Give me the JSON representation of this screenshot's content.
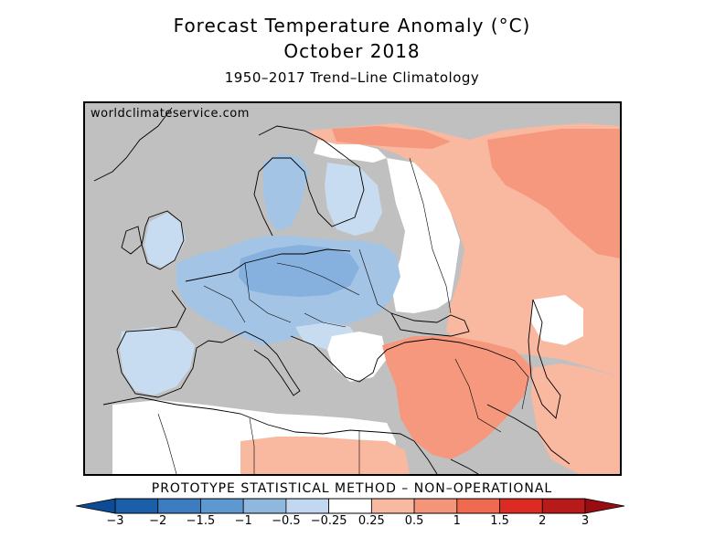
{
  "title": {
    "line1": "Forecast Temperature Anomaly (°C)",
    "line2": "October 2018",
    "line3": "1950–2017 Trend–Line Climatology"
  },
  "map": {
    "watermark": "worldclimateservice.com",
    "region": "Europe, North Africa and Middle East",
    "land_color": "#c0c0c0"
  },
  "method_label": "PROTOTYPE STATISTICAL METHOD  –  NON–OPERATIONAL",
  "colorbar": {
    "tick_labels": [
      "−3",
      "−2",
      "−1.5",
      "−1",
      "−0.5",
      "−0.25",
      "0.25",
      "0.5",
      "1",
      "1.5",
      "2",
      "3"
    ],
    "colors": [
      "#1a5fa8",
      "#3c7cc0",
      "#5e98d1",
      "#8fb8de",
      "#c2d8f0",
      "#ffffff",
      "#f8b9a2",
      "#f4957a",
      "#ef6a4f",
      "#dd2a22",
      "#b81919"
    ],
    "low_arrow_color": "#0d4c94",
    "high_arrow_color": "#990d12"
  },
  "anomaly_palette": {
    "cool_light": "#c8dcf1",
    "cool_mid": "#a4c4e6",
    "cool": "#86b1de",
    "cool_strong": "#6a9fd5",
    "warm_light": "#fcd7c8",
    "warm_mid": "#f9b8a0",
    "warm": "#f6987d",
    "warm_strong": "#f37f63",
    "neutral": "#ffffff"
  }
}
